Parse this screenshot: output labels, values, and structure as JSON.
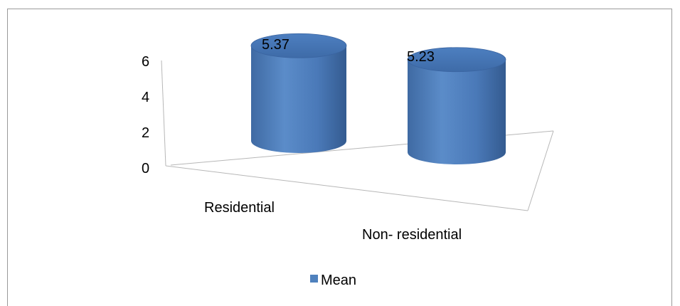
{
  "chart_data": {
    "type": "bar",
    "style": "3d-cylinder",
    "categories": [
      "Residential",
      "Non- residential"
    ],
    "series": [
      {
        "name": "Mean",
        "values": [
          5.37,
          5.23
        ],
        "color": "#4f81bd"
      }
    ],
    "data_labels": [
      "5.37",
      "5.23"
    ],
    "yticks": [
      "0",
      "2",
      "4",
      "6"
    ],
    "ylim": [
      0,
      6
    ],
    "title": "",
    "xlabel": "",
    "ylabel": "",
    "grid": false,
    "legend": {
      "position": "bottom",
      "items": [
        "Mean"
      ]
    }
  }
}
